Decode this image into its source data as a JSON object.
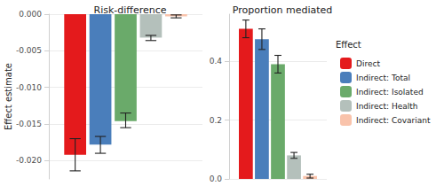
{
  "chart_data": [
    {
      "type": "bar",
      "title": "Risk-difference",
      "ylabel": "Effect estimate",
      "categories": [
        null
      ],
      "tick_labels": "y",
      "grid": true,
      "ylim": [
        -0.0225,
        0
      ],
      "yticks": [
        {
          "value": -0.02,
          "label": "-0.020"
        },
        -0.015,
        {
          "value": -0.01,
          "label": "-0.010"
        },
        -0.005,
        {
          "value": 0,
          "label": "0.000"
        }
      ],
      "series": [
        {
          "name": "Direct",
          "color": "#e41a1c",
          "values": [
            -0.0192
          ],
          "error_low": [
            -0.0214
          ],
          "error_high": [
            -0.017
          ]
        },
        {
          "name": "Indirect: Total",
          "color": "#4a7ebb",
          "values": [
            -0.0178
          ],
          "error_low": [
            -0.019
          ],
          "error_high": [
            -0.0167
          ]
        },
        {
          "name": "Indirect: Isolated",
          "color": "#6aaa6a",
          "values": [
            -0.0146
          ],
          "error_low": [
            -0.0155
          ],
          "error_high": [
            -0.0135
          ]
        },
        {
          "name": "Indirect: Health",
          "color": "#b4c0bb",
          "values": [
            -0.0032
          ],
          "error_low": [
            -0.0036
          ],
          "error_high": [
            -0.0029
          ]
        },
        {
          "name": "Indirect: Covariant",
          "color": "#f9c3ab",
          "values": [
            -0.0003
          ],
          "error_low": [
            -0.0005
          ],
          "error_high": [
            -0.0001
          ]
        }
      ]
    },
    {
      "type": "bar",
      "title": "Proportion mediated",
      "categories": [
        null
      ],
      "tick_labels": "y",
      "grid": true,
      "ylim": [
        0,
        0.56
      ],
      "yticks": [
        {
          "value": 0,
          "label": "0.0"
        },
        0.2,
        0.4
      ],
      "legend": "right",
      "legend_title": "Effect",
      "series": [
        {
          "name": "Direct",
          "color": "#e41a1c",
          "values": [
            0.51
          ],
          "error_low": [
            0.48
          ],
          "error_high": [
            0.54
          ]
        },
        {
          "name": "Indirect: Total",
          "color": "#4a7ebb",
          "values": [
            0.475
          ],
          "error_low": [
            0.44
          ],
          "error_high": [
            0.51
          ]
        },
        {
          "name": "Indirect: Isolated",
          "color": "#6aaa6a",
          "values": [
            0.39
          ],
          "error_low": [
            0.36
          ],
          "error_high": [
            0.42
          ]
        },
        {
          "name": "Indirect: Health",
          "color": "#b4c0bb",
          "values": [
            0.08
          ],
          "error_low": [
            0.07
          ],
          "error_high": [
            0.09
          ]
        },
        {
          "name": "Indirect: Covariant",
          "color": "#f9c3ab",
          "values": [
            0.01
          ],
          "error_low": [
            0.003
          ],
          "error_high": [
            0.016
          ]
        }
      ]
    }
  ]
}
